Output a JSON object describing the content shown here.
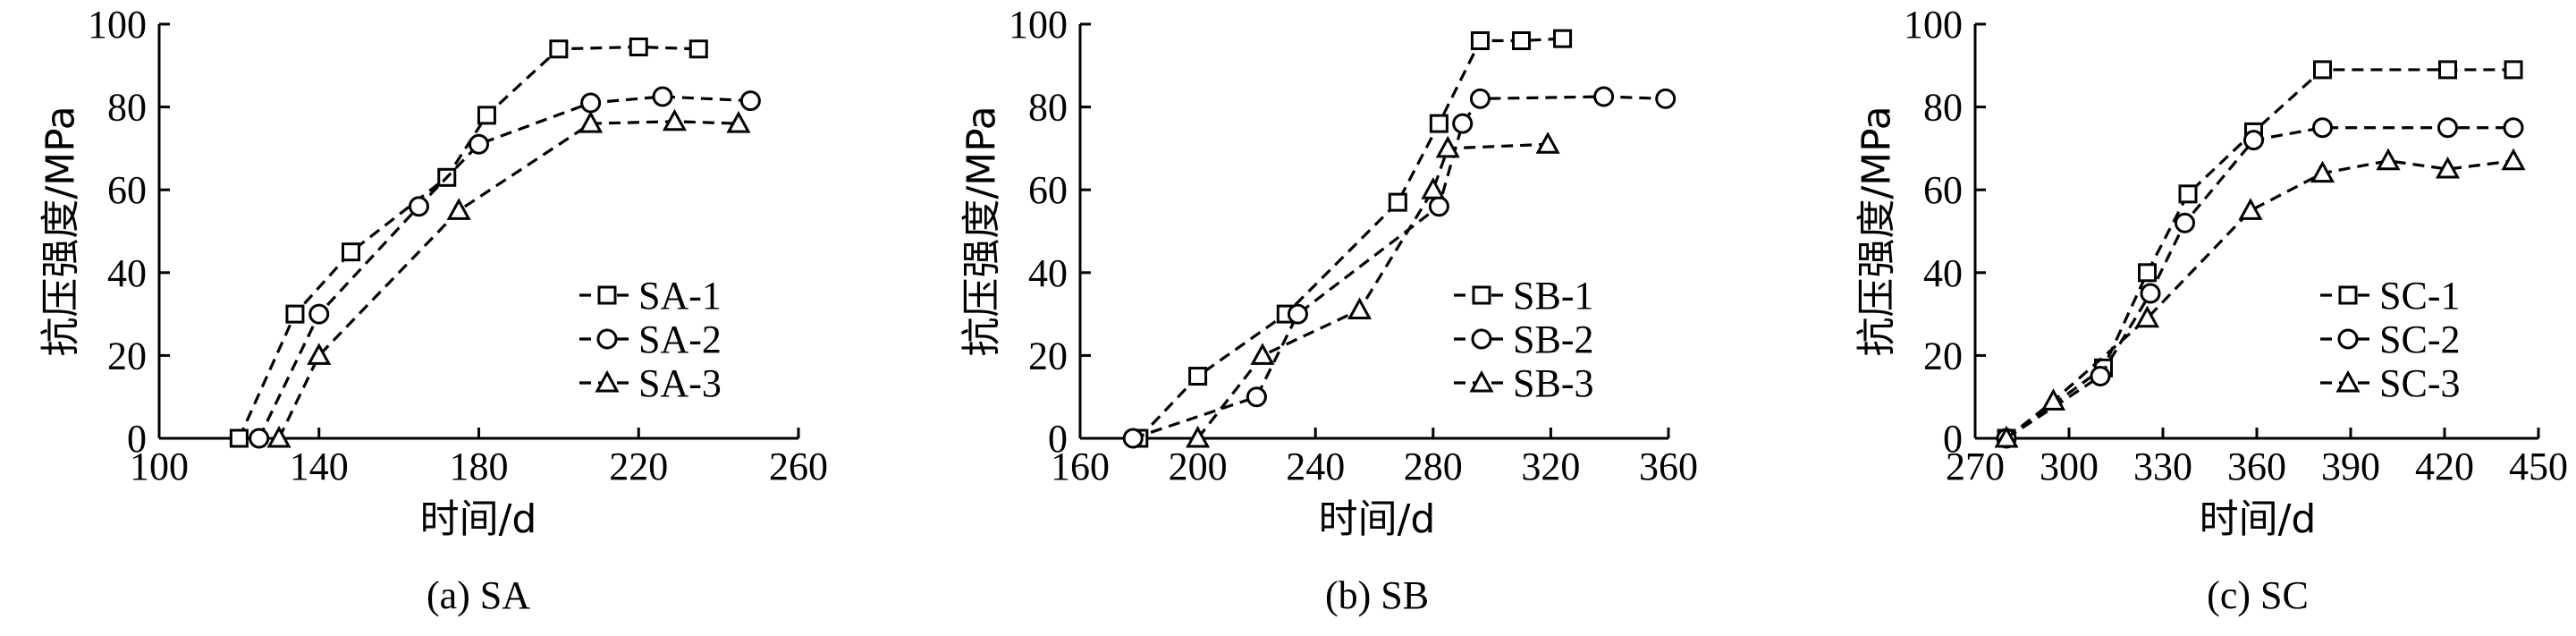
{
  "chart_data": [
    {
      "type": "line",
      "caption": "(a) SA",
      "xlabel": "时间/d",
      "ylabel": "抗压强度/MPa",
      "xlim": [
        100,
        260
      ],
      "ylim": [
        0,
        100
      ],
      "xticks": [
        100,
        140,
        180,
        220,
        260
      ],
      "yticks": [
        0,
        20,
        40,
        60,
        80,
        100
      ],
      "legend_position": "center-right",
      "series": [
        {
          "name": "SA-1",
          "marker": "square",
          "x": [
            120,
            134,
            148,
            172,
            182,
            200,
            220,
            235
          ],
          "y": [
            0,
            30,
            45,
            63,
            78,
            94,
            94.5,
            94
          ]
        },
        {
          "name": "SA-2",
          "marker": "circle",
          "x": [
            125,
            140,
            165,
            180,
            208,
            226,
            248
          ],
          "y": [
            0,
            30,
            56,
            71,
            81,
            82.5,
            81.5
          ]
        },
        {
          "name": "SA-3",
          "marker": "triangle",
          "x": [
            130,
            140,
            175,
            208,
            229,
            245
          ],
          "y": [
            0,
            20,
            55,
            76,
            76.5,
            76
          ]
        }
      ]
    },
    {
      "type": "line",
      "caption": "(b) SB",
      "xlabel": "时间/d",
      "ylabel": "抗压强度/MPa",
      "xlim": [
        160,
        360
      ],
      "ylim": [
        0,
        100
      ],
      "xticks": [
        160,
        200,
        240,
        280,
        320,
        360
      ],
      "yticks": [
        0,
        20,
        40,
        60,
        80,
        100
      ],
      "legend_position": "center-right",
      "series": [
        {
          "name": "SB-1",
          "marker": "square",
          "x": [
            180,
            200,
            230,
            268,
            282,
            296,
            310,
            324
          ],
          "y": [
            0,
            15,
            30,
            57,
            76,
            96,
            96,
            96.5
          ]
        },
        {
          "name": "SB-2",
          "marker": "circle",
          "x": [
            178,
            220,
            234,
            282,
            290,
            296,
            338,
            359
          ],
          "y": [
            0,
            10,
            30,
            56,
            76,
            82,
            82.5,
            82
          ]
        },
        {
          "name": "SB-3",
          "marker": "triangle",
          "x": [
            200,
            222,
            255,
            280,
            285,
            319
          ],
          "y": [
            0,
            20,
            31,
            60,
            70,
            71
          ]
        }
      ]
    },
    {
      "type": "line",
      "caption": "(c) SC",
      "xlabel": "时间/d",
      "ylabel": "抗压强度/MPa",
      "xlim": [
        270,
        450
      ],
      "ylim": [
        0,
        100
      ],
      "xticks": [
        270,
        300,
        330,
        360,
        390,
        420,
        450
      ],
      "yticks": [
        0,
        20,
        40,
        60,
        80,
        100
      ],
      "legend_position": "center-right",
      "series": [
        {
          "name": "SC-1",
          "marker": "square",
          "x": [
            280,
            311,
            325,
            338,
            359,
            381,
            421,
            442
          ],
          "y": [
            0,
            17,
            40,
            59,
            74,
            89,
            89,
            89
          ]
        },
        {
          "name": "SC-2",
          "marker": "circle",
          "x": [
            280,
            310,
            326,
            337,
            359,
            381,
            421,
            442
          ],
          "y": [
            0,
            15,
            35,
            52,
            72,
            75,
            75,
            75
          ]
        },
        {
          "name": "SC-3",
          "marker": "triangle",
          "x": [
            280,
            295,
            325,
            358,
            381,
            402,
            421,
            442
          ],
          "y": [
            0,
            9,
            29,
            55,
            64,
            67,
            65,
            67
          ]
        }
      ]
    }
  ]
}
